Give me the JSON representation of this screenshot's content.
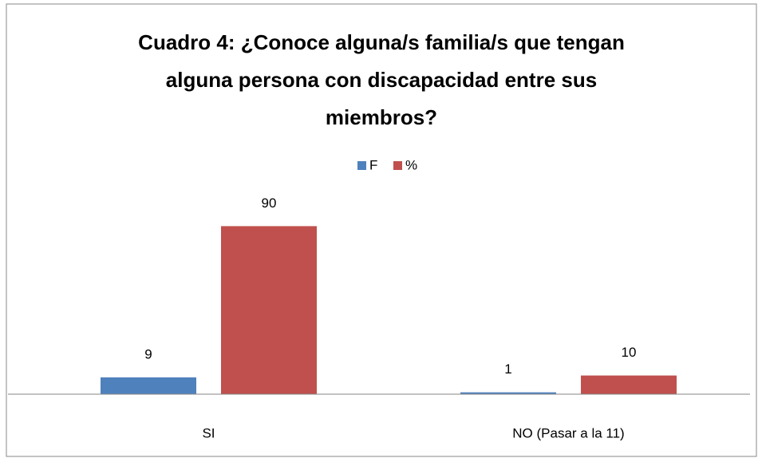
{
  "chart_data": {
    "type": "bar",
    "title": "Cuadro 4: ¿Conoce alguna/s familia/s que tengan alguna persona con discapacidad entre sus miembros?",
    "categories": [
      "SI",
      "NO (Pasar a la 11)"
    ],
    "series": [
      {
        "name": "F",
        "color": "#4f81bd",
        "values": [
          9,
          1
        ]
      },
      {
        "name": "%",
        "color": "#c0504d",
        "values": [
          90,
          10
        ]
      }
    ],
    "ylim": [
      0,
      100
    ],
    "legend": "top"
  }
}
